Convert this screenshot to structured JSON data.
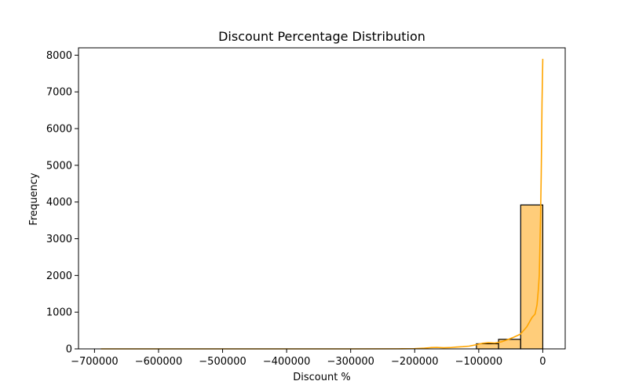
{
  "chart_data": {
    "type": "bar",
    "subtype": "histogram_with_kde",
    "title": "Discount Percentage Distribution",
    "xlabel": "Discount %",
    "ylabel": "Frequency",
    "xlim": [
      -725000,
      35000
    ],
    "ylim": [
      0,
      8200
    ],
    "grid": false,
    "legend": "none",
    "x_ticks": [
      -700000,
      -600000,
      -500000,
      -400000,
      -300000,
      -200000,
      -100000,
      0
    ],
    "x_tick_labels": [
      "−700000",
      "−600000",
      "−500000",
      "−400000",
      "−300000",
      "−200000",
      "−100000",
      "0"
    ],
    "y_ticks": [
      0,
      1000,
      2000,
      3000,
      4000,
      5000,
      6000,
      7000,
      8000
    ],
    "y_tick_labels": [
      "0",
      "1000",
      "2000",
      "3000",
      "4000",
      "5000",
      "6000",
      "7000",
      "8000"
    ],
    "bins": [
      {
        "x0": -103600,
        "x1": -69050,
        "value": 140
      },
      {
        "x0": -69050,
        "x1": -34500,
        "value": 260
      },
      {
        "x0": -34500,
        "x1": 0,
        "value": 3920
      }
    ],
    "kde": {
      "x": [
        -690000,
        -600000,
        -500000,
        -400000,
        -300000,
        -220000,
        -200000,
        -185000,
        -175000,
        -165000,
        -155000,
        -145000,
        -135000,
        -125000,
        -115000,
        -105000,
        -95000,
        -85000,
        -75000,
        -65000,
        -55000,
        -45000,
        -35000,
        -25000,
        -17000,
        -12000,
        -9000,
        -7000,
        -5500,
        -4500,
        -3500,
        -2500,
        -1800,
        -1200,
        -600,
        0
      ],
      "y": [
        0,
        0,
        0,
        0,
        0,
        3,
        8,
        20,
        35,
        40,
        30,
        35,
        50,
        60,
        75,
        110,
        150,
        170,
        160,
        190,
        250,
        320,
        400,
        600,
        850,
        950,
        1200,
        1600,
        2000,
        2800,
        3600,
        4700,
        5700,
        6700,
        7300,
        7900
      ]
    },
    "colors": {
      "bar_fill": "#ffcd7a",
      "bar_edge": "#000000",
      "kde_line": "#ffa500"
    }
  }
}
